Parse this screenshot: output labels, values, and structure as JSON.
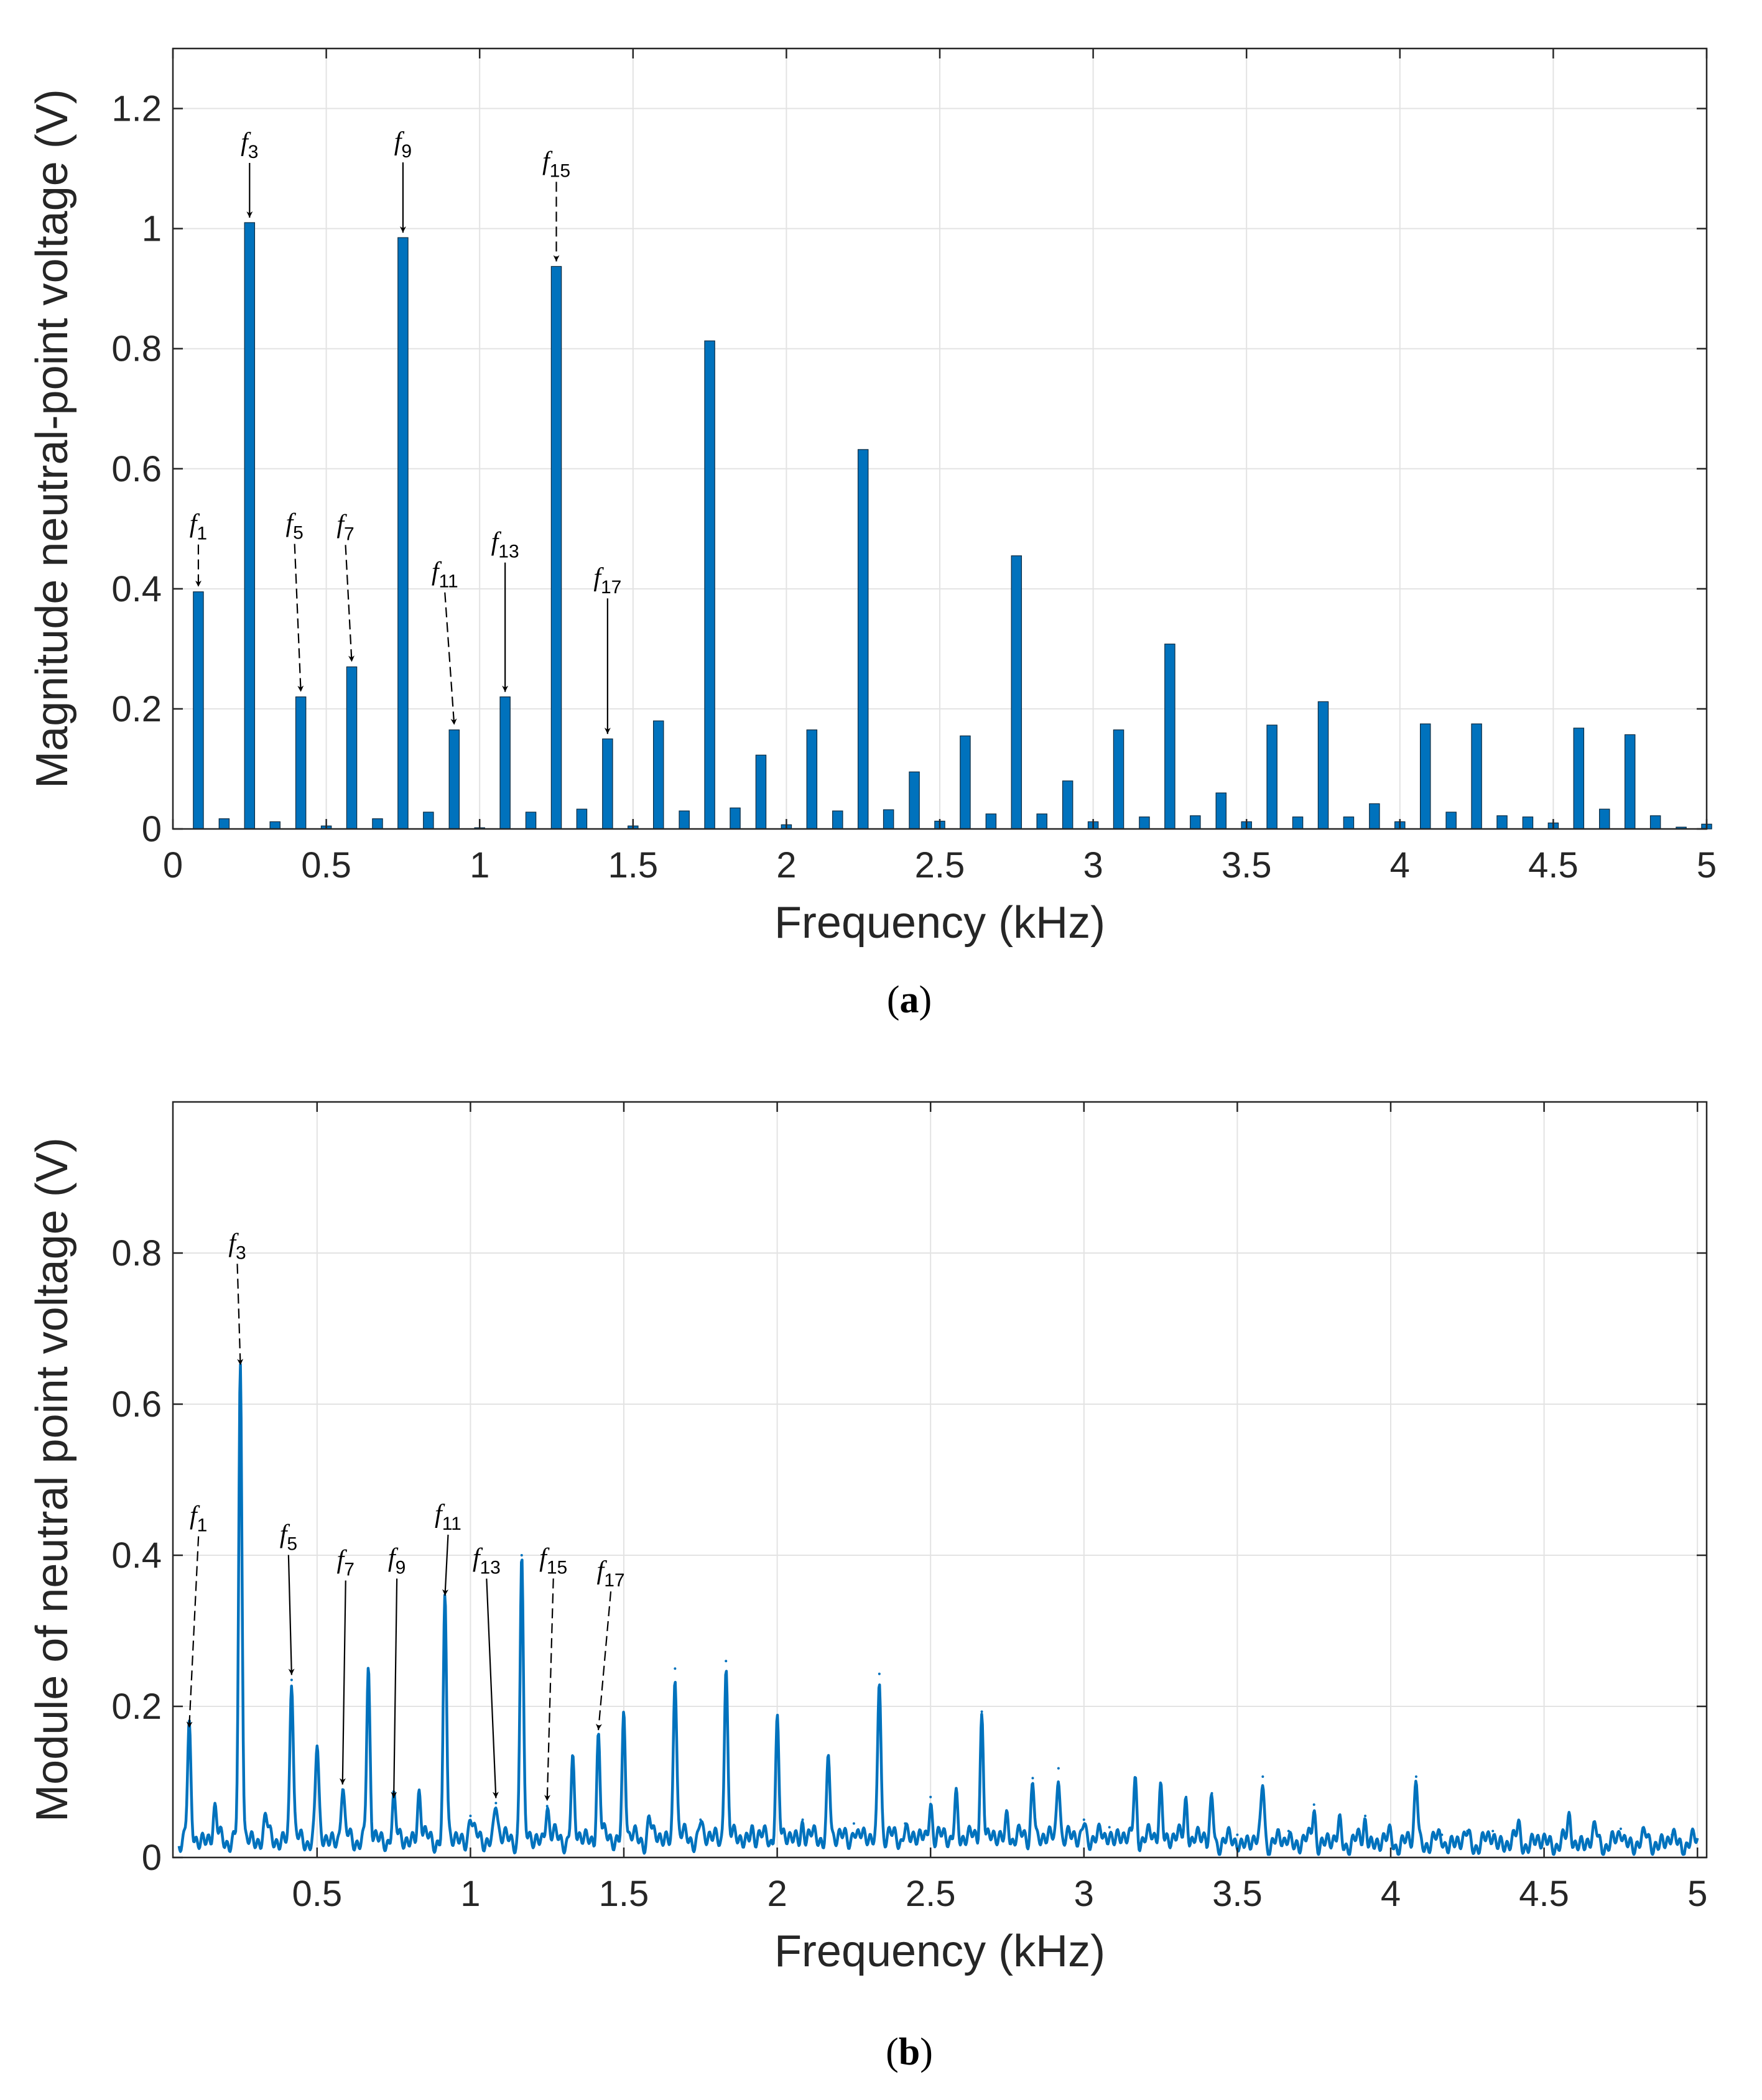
{
  "panel_a": {
    "caption_open": "(",
    "caption_letter": "a",
    "caption_close": ")"
  },
  "panel_b": {
    "caption_open": "(",
    "caption_letter": "b",
    "caption_close": ")"
  },
  "colors": {
    "series": "#0072BD",
    "grid": "#e3e3e3",
    "axis": "#262626",
    "annotation": "#000000"
  },
  "chart_data": [
    {
      "type": "bar",
      "xlabel": "Frequency  (kHz)",
      "ylabel": "Magnitude neutral-point voltage (V)",
      "xlim": [
        0,
        5
      ],
      "ylim": [
        0,
        1.3
      ],
      "xticks": [
        0,
        0.5,
        1,
        1.5,
        2,
        2.5,
        3,
        3.5,
        4,
        4.5,
        5
      ],
      "xtick_labels": [
        "0",
        "0.5",
        "1",
        "1.5",
        "2",
        "2.5",
        "3",
        "3.5",
        "4",
        "4.5",
        "5"
      ],
      "yticks": [
        0,
        0.2,
        0.4,
        0.6,
        0.8,
        1,
        1.2
      ],
      "ytick_labels": [
        "0",
        "0.2",
        "0.4",
        "0.6",
        "0.8",
        "1",
        "1.2"
      ],
      "grid": true,
      "bar_width_khz": 0.033,
      "x": [
        0.083,
        0.167,
        0.25,
        0.333,
        0.417,
        0.5,
        0.583,
        0.667,
        0.75,
        0.833,
        0.917,
        1.0,
        1.083,
        1.167,
        1.25,
        1.333,
        1.417,
        1.5,
        1.583,
        1.667,
        1.75,
        1.833,
        1.917,
        2.0,
        2.083,
        2.167,
        2.25,
        2.333,
        2.417,
        2.5,
        2.583,
        2.667,
        2.75,
        2.833,
        2.917,
        3.0,
        3.083,
        3.167,
        3.25,
        3.333,
        3.417,
        3.5,
        3.583,
        3.667,
        3.75,
        3.833,
        3.917,
        4.0,
        4.083,
        4.167,
        4.25,
        4.333,
        4.417,
        4.5,
        4.583,
        4.667,
        4.75,
        4.833,
        4.917,
        5.0
      ],
      "values": [
        0.395,
        0.017,
        1.01,
        0.012,
        0.22,
        0.005,
        0.27,
        0.017,
        0.985,
        0.028,
        0.165,
        0.002,
        0.22,
        0.028,
        0.937,
        0.033,
        0.15,
        0.005,
        0.18,
        0.03,
        0.813,
        0.035,
        0.123,
        0.007,
        0.165,
        0.03,
        0.632,
        0.032,
        0.095,
        0.013,
        0.155,
        0.025,
        0.455,
        0.025,
        0.08,
        0.012,
        0.165,
        0.02,
        0.308,
        0.022,
        0.06,
        0.012,
        0.173,
        0.02,
        0.212,
        0.02,
        0.042,
        0.012,
        0.175,
        0.028,
        0.175,
        0.022,
        0.02,
        0.01,
        0.168,
        0.033,
        0.157,
        0.022,
        0.003,
        0.008
      ],
      "annotations": [
        {
          "base": "f",
          "sub": "1",
          "x": 0.083,
          "y": 0.395
        },
        {
          "base": "f",
          "sub": "3",
          "x": 0.25,
          "y": 1.01
        },
        {
          "base": "f",
          "sub": "5",
          "x": 0.417,
          "y": 0.22
        },
        {
          "base": "f",
          "sub": "7",
          "x": 0.583,
          "y": 0.27
        },
        {
          "base": "f",
          "sub": "9",
          "x": 0.75,
          "y": 0.985
        },
        {
          "base": "f",
          "sub": "11",
          "x": 0.917,
          "y": 0.165
        },
        {
          "base": "f",
          "sub": "13",
          "x": 1.083,
          "y": 0.22
        },
        {
          "base": "f",
          "sub": "15",
          "x": 1.25,
          "y": 0.937
        },
        {
          "base": "f",
          "sub": "17",
          "x": 1.417,
          "y": 0.15
        }
      ]
    },
    {
      "type": "line",
      "xlabel": "Frequency  (kHz)",
      "ylabel": "Module of neutral point voltage (V)",
      "xlim": [
        0.03,
        5.03
      ],
      "ylim": [
        0,
        1.0
      ],
      "xticks": [
        0.5,
        1,
        1.5,
        2,
        2.5,
        3,
        3.5,
        4,
        4.5,
        5
      ],
      "xtick_labels": [
        "0.5",
        "1",
        "1.5",
        "2",
        "2.5",
        "3",
        "3.5",
        "4",
        "4.5",
        "5"
      ],
      "yticks": [
        0,
        0.2,
        0.4,
        0.6,
        0.8
      ],
      "ytick_labels": [
        "0",
        "0.2",
        "0.4",
        "0.6",
        "0.8"
      ],
      "grid": true,
      "baseline": 0.025,
      "peaks": [
        {
          "x": 0.083,
          "y": 0.165
        },
        {
          "x": 0.167,
          "y": 0.06
        },
        {
          "x": 0.25,
          "y": 0.645
        },
        {
          "x": 0.333,
          "y": 0.048
        },
        {
          "x": 0.417,
          "y": 0.235
        },
        {
          "x": 0.5,
          "y": 0.145
        },
        {
          "x": 0.583,
          "y": 0.09
        },
        {
          "x": 0.667,
          "y": 0.245
        },
        {
          "x": 0.75,
          "y": 0.072
        },
        {
          "x": 0.833,
          "y": 0.085
        },
        {
          "x": 0.917,
          "y": 0.34
        },
        {
          "x": 1.0,
          "y": 0.055
        },
        {
          "x": 1.083,
          "y": 0.072
        },
        {
          "x": 1.167,
          "y": 0.4
        },
        {
          "x": 1.25,
          "y": 0.068
        },
        {
          "x": 1.333,
          "y": 0.125
        },
        {
          "x": 1.417,
          "y": 0.162
        },
        {
          "x": 1.5,
          "y": 0.19
        },
        {
          "x": 1.583,
          "y": 0.055
        },
        {
          "x": 1.667,
          "y": 0.25
        },
        {
          "x": 1.75,
          "y": 0.05
        },
        {
          "x": 1.833,
          "y": 0.26
        },
        {
          "x": 1.917,
          "y": 0.04
        },
        {
          "x": 2.0,
          "y": 0.183
        },
        {
          "x": 2.083,
          "y": 0.05
        },
        {
          "x": 2.167,
          "y": 0.135
        },
        {
          "x": 2.25,
          "y": 0.045
        },
        {
          "x": 2.333,
          "y": 0.243
        },
        {
          "x": 2.417,
          "y": 0.045
        },
        {
          "x": 2.5,
          "y": 0.08
        },
        {
          "x": 2.583,
          "y": 0.085
        },
        {
          "x": 2.667,
          "y": 0.193
        },
        {
          "x": 2.75,
          "y": 0.06
        },
        {
          "x": 2.833,
          "y": 0.105
        },
        {
          "x": 2.917,
          "y": 0.118
        },
        {
          "x": 3.0,
          "y": 0.05
        },
        {
          "x": 3.083,
          "y": 0.04
        },
        {
          "x": 3.167,
          "y": 0.105
        },
        {
          "x": 3.25,
          "y": 0.095
        },
        {
          "x": 3.333,
          "y": 0.08
        },
        {
          "x": 3.417,
          "y": 0.085
        },
        {
          "x": 3.5,
          "y": 0.03
        },
        {
          "x": 3.583,
          "y": 0.107
        },
        {
          "x": 3.667,
          "y": 0.035
        },
        {
          "x": 3.75,
          "y": 0.07
        },
        {
          "x": 3.833,
          "y": 0.05
        },
        {
          "x": 3.917,
          "y": 0.055
        },
        {
          "x": 4.0,
          "y": 0.035
        },
        {
          "x": 4.083,
          "y": 0.107
        },
        {
          "x": 4.167,
          "y": 0.03
        },
        {
          "x": 4.25,
          "y": 0.035
        },
        {
          "x": 4.333,
          "y": 0.035
        },
        {
          "x": 4.417,
          "y": 0.042
        },
        {
          "x": 4.5,
          "y": 0.025
        },
        {
          "x": 4.583,
          "y": 0.055
        },
        {
          "x": 4.667,
          "y": 0.04
        },
        {
          "x": 4.75,
          "y": 0.038
        },
        {
          "x": 4.833,
          "y": 0.03
        },
        {
          "x": 4.917,
          "y": 0.03
        }
      ],
      "annotations": [
        {
          "base": "f",
          "sub": "1",
          "x": 0.083,
          "y": 0.165
        },
        {
          "base": "f",
          "sub": "3",
          "x": 0.25,
          "y": 0.645
        },
        {
          "base": "f",
          "sub": "5",
          "x": 0.417,
          "y": 0.235
        },
        {
          "base": "f",
          "sub": "7",
          "x": 0.583,
          "y": 0.09
        },
        {
          "base": "f",
          "sub": "9",
          "x": 0.75,
          "y": 0.072
        },
        {
          "base": "f",
          "sub": "11",
          "x": 0.917,
          "y": 0.34
        },
        {
          "base": "f",
          "sub": "13",
          "x": 1.083,
          "y": 0.072
        },
        {
          "base": "f",
          "sub": "15",
          "x": 1.25,
          "y": 0.068
        },
        {
          "base": "f",
          "sub": "17",
          "x": 1.417,
          "y": 0.162
        }
      ]
    }
  ]
}
